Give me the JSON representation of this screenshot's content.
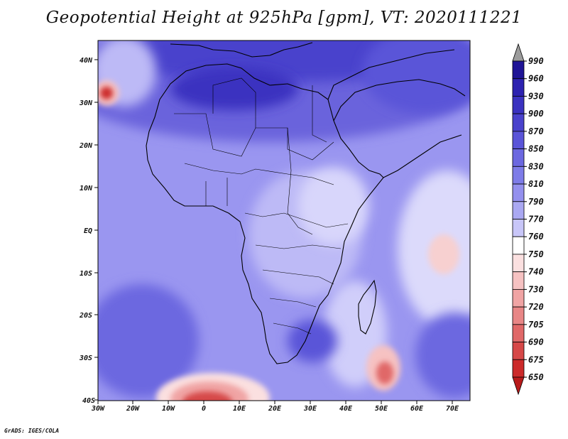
{
  "title": "Geopotential Height at 925hPa [gpm], VT: 2020111221",
  "credit": "GrADS: IGES/COLA",
  "lat_ticks": [
    "40N",
    "30N",
    "20N",
    "10N",
    "EQ",
    "10S",
    "20S",
    "30S",
    "40S"
  ],
  "lon_ticks": [
    "30W",
    "20W",
    "10W",
    "0",
    "10E",
    "20E",
    "30E",
    "40E",
    "50E",
    "60E",
    "70E"
  ],
  "colorbar": {
    "levels": [
      "990",
      "960",
      "930",
      "900",
      "870",
      "850",
      "830",
      "810",
      "790",
      "770",
      "760",
      "750",
      "740",
      "730",
      "720",
      "705",
      "690",
      "675",
      "650"
    ],
    "colors": [
      "#9c9c9c",
      "#1f1496",
      "#2d22b0",
      "#3b32c0",
      "#4a42cc",
      "#5a54d8",
      "#6c68e0",
      "#7e7ce8",
      "#9490ee",
      "#aaa8f2",
      "#c8c6f8",
      "#ffffff",
      "#fbe0e0",
      "#f6c2c2",
      "#f0a4a4",
      "#e88686",
      "#e06868",
      "#d64848",
      "#cc2a2a",
      "#b81a1a"
    ]
  },
  "colors": {
    "ocean": "#8f8cf0",
    "land": "#7a76e6",
    "high": "#4a42cc",
    "low": "#e06060"
  }
}
